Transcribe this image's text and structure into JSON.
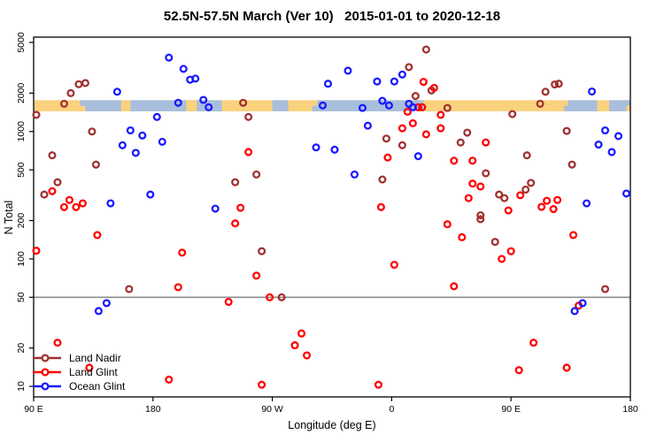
{
  "title": "52.5N-57.5N March (Ver 10)   2015-01-01 to 2020-12-18",
  "chart_data": {
    "type": "scatter",
    "title": "52.5N-57.5N March (Ver 10)   2015-01-01 to 2020-12-18",
    "xlabel": "Longitude (deg E)",
    "ylabel": "N Total",
    "x_axis": {
      "range_deg": [
        90,
        540
      ],
      "ticks": [
        {
          "lon": 90,
          "label": "90 E"
        },
        {
          "lon": 180,
          "label": "180"
        },
        {
          "lon": 270,
          "label": "90 W"
        },
        {
          "lon": 360,
          "label": "0"
        },
        {
          "lon": 450,
          "label": "90 E"
        },
        {
          "lon": 540,
          "label": "180"
        }
      ]
    },
    "y_axis": {
      "scale": "log10",
      "range": [
        8.4,
        5480
      ],
      "ticks": [
        5000,
        2000,
        1000,
        500,
        200,
        100,
        50,
        20,
        10
      ]
    },
    "reference_line": {
      "y_value": 50,
      "color": "#8c8c8c"
    },
    "map_band": {
      "comment": "land/ocean strip for 52.5N-57.5N drawn across plot",
      "n_top": 1760,
      "n_bottom": 1440,
      "land_color": "#FAD27E",
      "ocean_color": "#A8BEDC",
      "ocean_segments_lon": [
        [
          129,
          156
        ],
        [
          163,
          232
        ],
        [
          270,
          282
        ],
        [
          304,
          384
        ],
        [
          493,
          515
        ],
        [
          524,
          537
        ]
      ],
      "land_patches_lon": [
        [
          205,
          213
        ]
      ],
      "shore_speckles": [
        {
          "from": 125,
          "to": 129,
          "half": "top",
          "type": "ocean"
        },
        {
          "from": 156,
          "to": 159,
          "half": "bottom",
          "type": "land"
        },
        {
          "from": 232,
          "to": 235,
          "half": "top",
          "type": "land"
        },
        {
          "from": 300,
          "to": 304,
          "half": "bottom",
          "type": "ocean"
        },
        {
          "from": 384,
          "to": 388,
          "half": "top",
          "type": "land"
        },
        {
          "from": 490,
          "to": 493,
          "half": "bottom",
          "type": "ocean"
        },
        {
          "from": 537,
          "to": 540,
          "half": "top",
          "type": "ocean"
        }
      ]
    },
    "legend": {
      "position": "bottom-left"
    },
    "series": [
      {
        "name": "Land Nadir",
        "color": "#A03232",
        "marker": "open-circle",
        "points": [
          [
            118,
            2000
          ],
          [
            113,
            1650
          ],
          [
            124,
            2350
          ],
          [
            129,
            2400
          ],
          [
            92,
            1350
          ],
          [
            134,
            1000
          ],
          [
            104,
            650
          ],
          [
            137,
            550
          ],
          [
            108,
            400
          ],
          [
            98,
            320
          ],
          [
            386,
            4400
          ],
          [
            373,
            3200
          ],
          [
            390,
            2100
          ],
          [
            378,
            1900
          ],
          [
            248,
            1680
          ],
          [
            252,
            1300
          ],
          [
            356,
            880
          ],
          [
            368,
            780
          ],
          [
            258,
            460
          ],
          [
            242,
            400
          ],
          [
            353,
            420
          ],
          [
            476,
            2050
          ],
          [
            483,
            2340
          ],
          [
            486,
            2370
          ],
          [
            472,
            1650
          ],
          [
            402,
            1530
          ],
          [
            451,
            1370
          ],
          [
            417,
            980
          ],
          [
            492,
            1010
          ],
          [
            412,
            820
          ],
          [
            462,
            650
          ],
          [
            496,
            550
          ],
          [
            431,
            470
          ],
          [
            465,
            395
          ],
          [
            461,
            350
          ],
          [
            441,
            320
          ],
          [
            445,
            300
          ],
          [
            427,
            220
          ],
          [
            162,
            58
          ],
          [
            277,
            50
          ],
          [
            262,
            115
          ],
          [
            427,
            205
          ],
          [
            438,
            136
          ],
          [
            521,
            58
          ]
        ]
      },
      {
        "name": "Land Glint",
        "color": "#FF0000",
        "marker": "open-circle",
        "points": [
          [
            104,
            340
          ],
          [
            117,
            290
          ],
          [
            113,
            255
          ],
          [
            122,
            255
          ],
          [
            127,
            273
          ],
          [
            92,
            116
          ],
          [
            384,
            2450
          ],
          [
            372,
            1430
          ],
          [
            380,
            1550
          ],
          [
            383,
            1550
          ],
          [
            376,
            1160
          ],
          [
            368,
            1060
          ],
          [
            386,
            950
          ],
          [
            252,
            690
          ],
          [
            357,
            625
          ],
          [
            246,
            252
          ],
          [
            352,
            255
          ],
          [
            392,
            2200
          ],
          [
            397,
            1350
          ],
          [
            397,
            1060
          ],
          [
            431,
            820
          ],
          [
            407,
            590
          ],
          [
            421,
            590
          ],
          [
            421,
            390
          ],
          [
            427,
            370
          ],
          [
            418,
            300
          ],
          [
            457,
            316
          ],
          [
            477,
            286
          ],
          [
            485,
            290
          ],
          [
            473,
            256
          ],
          [
            482,
            246
          ],
          [
            448,
            240
          ],
          [
            138,
            154
          ],
          [
            202,
            112
          ],
          [
            199,
            60
          ],
          [
            237,
            46
          ],
          [
            242,
            190
          ],
          [
            108,
            22
          ],
          [
            132,
            14
          ],
          [
            192,
            11.3
          ],
          [
            362,
            90
          ],
          [
            258,
            74
          ],
          [
            268,
            50
          ],
          [
            292,
            26
          ],
          [
            287,
            21
          ],
          [
            296,
            17.5
          ],
          [
            262,
            10.3
          ],
          [
            350,
            10.3
          ],
          [
            402,
            187
          ],
          [
            413,
            148
          ],
          [
            450,
            115
          ],
          [
            443,
            100
          ],
          [
            497,
            154
          ],
          [
            407,
            61
          ],
          [
            501,
            43
          ],
          [
            467,
            22
          ],
          [
            492,
            14
          ],
          [
            456,
            13.4
          ]
        ]
      },
      {
        "name": "Ocean Glint",
        "color": "#1A1AFF",
        "marker": "open-circle",
        "points": [
          [
            153,
            2050
          ],
          [
            192,
            3800
          ],
          [
            203,
            3100
          ],
          [
            208,
            2550
          ],
          [
            212,
            2600
          ],
          [
            199,
            1680
          ],
          [
            218,
            1770
          ],
          [
            222,
            1550
          ],
          [
            183,
            1300
          ],
          [
            163,
            1020
          ],
          [
            172,
            930
          ],
          [
            157,
            780
          ],
          [
            187,
            830
          ],
          [
            167,
            680
          ],
          [
            148,
            273
          ],
          [
            178,
            320
          ],
          [
            227,
            248
          ],
          [
            327,
            3000
          ],
          [
            368,
            2800
          ],
          [
            312,
            2370
          ],
          [
            349,
            2470
          ],
          [
            362,
            2470
          ],
          [
            308,
            1600
          ],
          [
            338,
            1530
          ],
          [
            353,
            1740
          ],
          [
            358,
            1600
          ],
          [
            373,
            1650
          ],
          [
            376,
            1550
          ],
          [
            342,
            1110
          ],
          [
            303,
            750
          ],
          [
            317,
            720
          ],
          [
            380,
            640
          ],
          [
            332,
            460
          ],
          [
            511,
            2060
          ],
          [
            521,
            1020
          ],
          [
            516,
            790
          ],
          [
            531,
            920
          ],
          [
            526,
            690
          ],
          [
            507,
            273
          ],
          [
            537,
            326
          ],
          [
            145,
            45
          ],
          [
            139,
            39
          ],
          [
            504,
            45
          ],
          [
            498,
            39
          ]
        ]
      }
    ]
  }
}
